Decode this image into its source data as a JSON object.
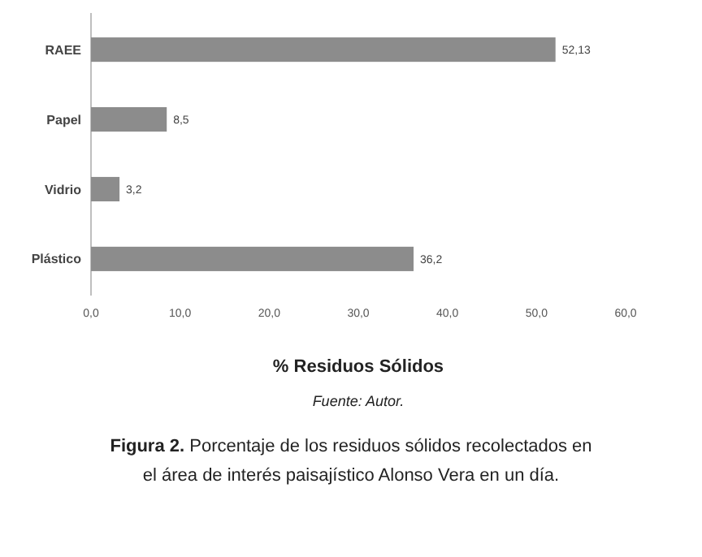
{
  "chart_data": {
    "type": "bar",
    "orientation": "horizontal",
    "categories": [
      "RAEE",
      "Papel",
      "Vidrio",
      "Plástico"
    ],
    "values": [
      52.13,
      8.5,
      3.2,
      36.2
    ],
    "value_labels": [
      "52,13",
      "8,5",
      "3,2",
      "36,2"
    ],
    "color": "#8c8c8c",
    "xlim": [
      0,
      60
    ],
    "xticks": [
      {
        "value": 0,
        "label": "0,0"
      },
      {
        "value": 10,
        "label": "10,0"
      },
      {
        "value": 20,
        "label": "20,0"
      },
      {
        "value": 30,
        "label": "30,0"
      },
      {
        "value": 40,
        "label": "40,0"
      },
      {
        "value": 50,
        "label": "50,0"
      },
      {
        "value": 60,
        "label": "60,0"
      }
    ],
    "xlabel": "% Residuos Sólidos",
    "annotations": [
      "Fuente: Autor.",
      "Figura 2. Porcentaje de los residuos sólidos recolectados en el área de interés paisajístico Alonso Vera en un día."
    ],
    "grid": false
  }
}
